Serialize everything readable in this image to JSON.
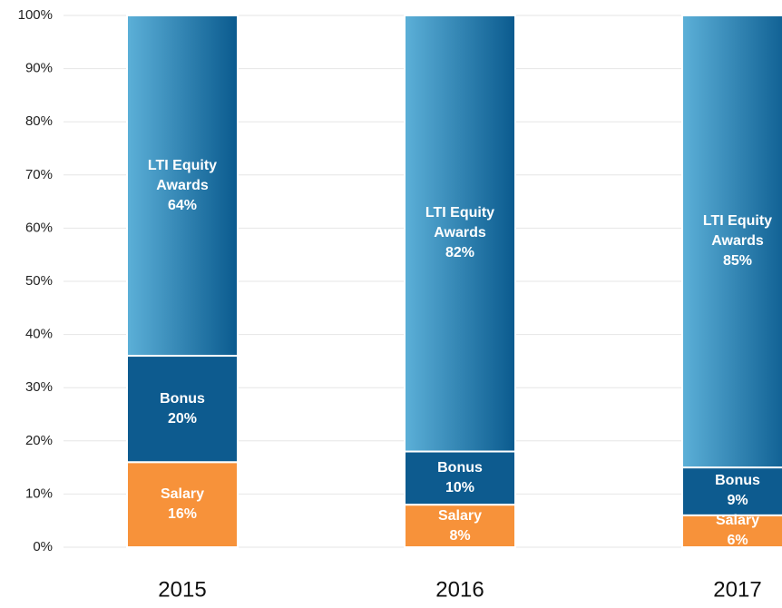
{
  "chart_data": {
    "type": "stacked-bar",
    "categories": [
      "2015",
      "2016",
      "2017"
    ],
    "series": [
      {
        "name": "Salary",
        "color": "#f7923a",
        "values": [
          16,
          8,
          6
        ],
        "value_labels": [
          "16%",
          "8%",
          "6%"
        ]
      },
      {
        "name": "Bonus",
        "color": "#0d5b8f",
        "values": [
          20,
          10,
          9
        ],
        "value_labels": [
          "20%",
          "10%",
          "9%"
        ]
      },
      {
        "name": "LTI Equity Awards",
        "color": "#5cb0d8",
        "values": [
          64,
          82,
          85
        ],
        "value_labels": [
          "64%",
          "82%",
          "85%"
        ]
      }
    ],
    "ylim": [
      0,
      100
    ],
    "yticks": [
      {
        "value": 0,
        "label": "0%"
      },
      {
        "value": 10,
        "label": "10%"
      },
      {
        "value": 20,
        "label": "20%"
      },
      {
        "value": 30,
        "label": "30%"
      },
      {
        "value": 40,
        "label": "40%"
      },
      {
        "value": 50,
        "label": "50%"
      },
      {
        "value": 60,
        "label": "60%"
      },
      {
        "value": 70,
        "label": "70%"
      },
      {
        "value": 80,
        "label": "80%"
      },
      {
        "value": 90,
        "label": "90%"
      },
      {
        "value": 100,
        "label": "100%"
      }
    ],
    "grid": true
  }
}
